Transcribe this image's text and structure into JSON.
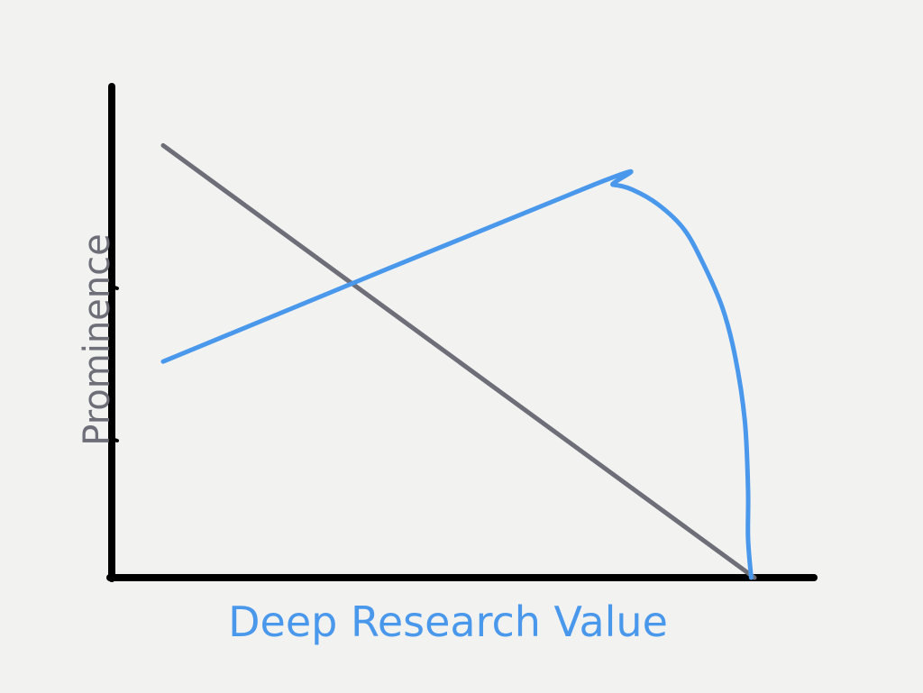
{
  "chart_data": {
    "type": "line",
    "title": "",
    "xlabel": "Deep Research Value",
    "ylabel": "Prominence",
    "xlim": [
      0,
      100
    ],
    "ylim": [
      0,
      100
    ],
    "grid": false,
    "legend": "none",
    "series": [
      {
        "color": "#6e6e78",
        "points": [
          [
            8,
            88
          ],
          [
            100,
            0
          ]
        ]
      },
      {
        "color": "#4a98ec",
        "points": [
          [
            8,
            44
          ],
          [
            75,
            80
          ],
          [
            78,
            80
          ],
          [
            81,
            79
          ],
          [
            85,
            76
          ],
          [
            89,
            71
          ],
          [
            92,
            64
          ],
          [
            95,
            55
          ],
          [
            97,
            45
          ],
          [
            98.5,
            32
          ],
          [
            99,
            18
          ],
          [
            99,
            8
          ],
          [
            99.5,
            0
          ]
        ]
      }
    ],
    "axis_color": "#000000",
    "xlabel_color": "#4a98ec",
    "ylabel_color": "#6e6e78"
  }
}
